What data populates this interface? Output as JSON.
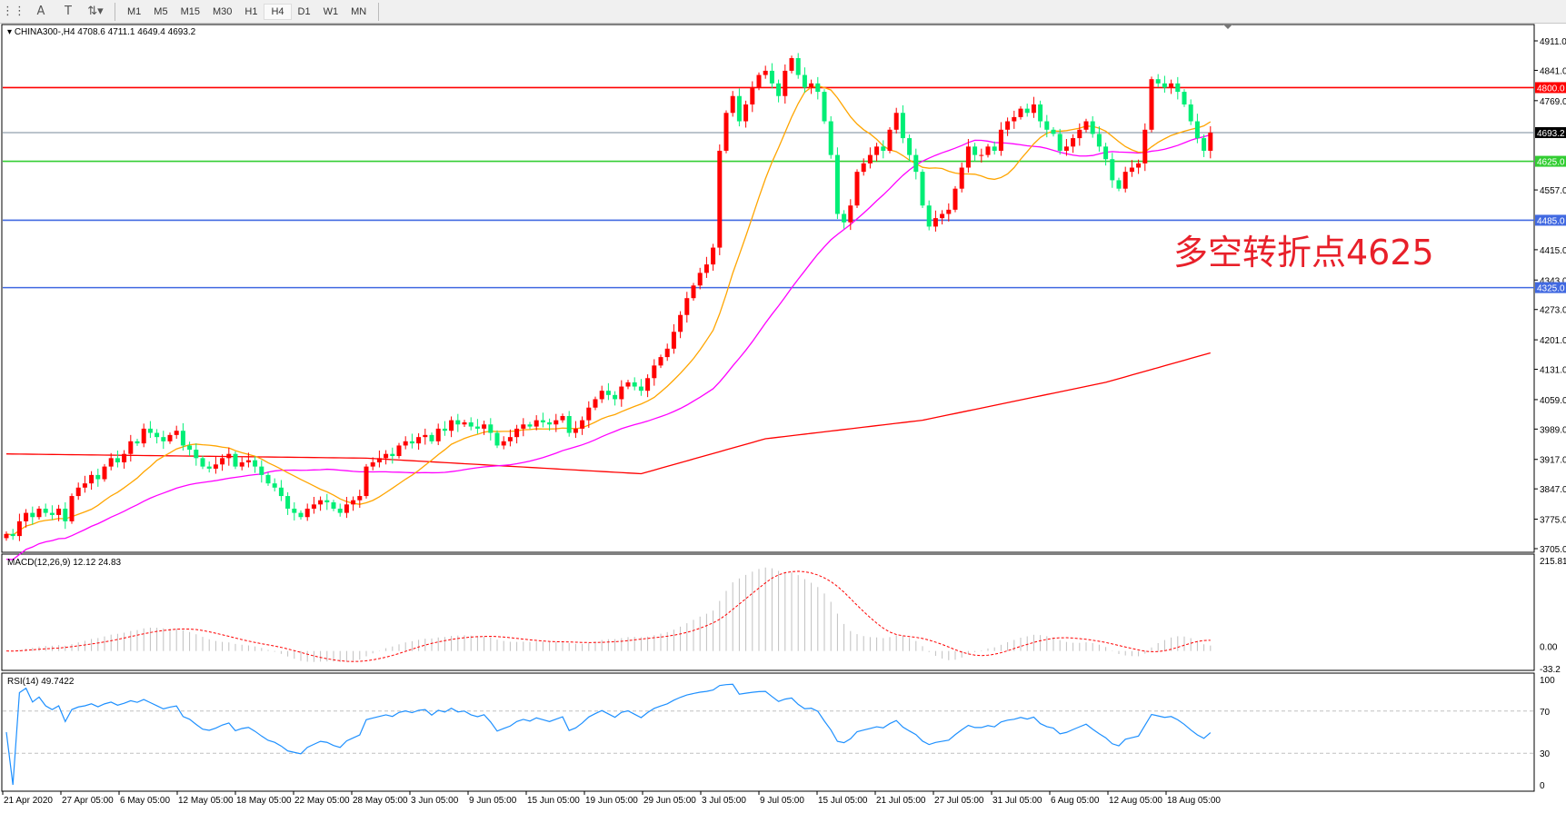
{
  "toolbar": {
    "icons": [
      "grid-icon",
      "text-icon",
      "text-label-icon",
      "arrows-icon"
    ],
    "timeframes": [
      "M1",
      "M5",
      "M15",
      "M30",
      "H1",
      "H4",
      "D1",
      "W1",
      "MN"
    ],
    "active_timeframe": "H4"
  },
  "main": {
    "header": "CHINA300-,H4  4708.6 4711.1 4649.4 4693.2",
    "annotation": "多空转折点4625",
    "annotation_color": "#e8202a"
  },
  "chart_data": [
    {
      "type": "candlestick",
      "symbol": "CHINA300-",
      "timeframe": "H4",
      "ylim": [
        3705,
        4911
      ],
      "y_ticks": [
        "4911.0",
        "4841.0",
        "4769.0",
        "4557.0",
        "4415.0",
        "4343.0",
        "4273.0",
        "4201.0",
        "4131.0",
        "4059.0",
        "3989.0",
        "3917.0",
        "3847.0",
        "3775.0",
        "3705.0"
      ],
      "x_ticks": [
        "21 Apr 2020",
        "27 Apr 05:00",
        "6 May 05:00",
        "12 May 05:00",
        "18 May 05:00",
        "22 May 05:00",
        "28 May 05:00",
        "3 Jun 05:00",
        "9 Jun 05:00",
        "15 Jun 05:00",
        "19 Jun 05:00",
        "29 Jun 05:00",
        "3 Jul 05:00",
        "9 Jul 05:00",
        "15 Jul 05:00",
        "21 Jul 05:00",
        "27 Jul 05:00",
        "31 Jul 05:00",
        "6 Aug 05:00",
        "12 Aug 05:00",
        "18 Aug 05:00"
      ],
      "up_color": "#ff0000",
      "down_color": "#00ee76",
      "closes": [
        3740,
        3735,
        3770,
        3790,
        3780,
        3800,
        3790,
        3785,
        3800,
        3770,
        3830,
        3850,
        3860,
        3880,
        3870,
        3900,
        3920,
        3910,
        3930,
        3960,
        3955,
        3990,
        3980,
        3970,
        3960,
        3975,
        3985,
        3950,
        3940,
        3920,
        3900,
        3895,
        3905,
        3920,
        3930,
        3900,
        3910,
        3915,
        3900,
        3880,
        3860,
        3850,
        3830,
        3800,
        3790,
        3780,
        3800,
        3810,
        3820,
        3815,
        3800,
        3790,
        3810,
        3820,
        3830,
        3900,
        3910,
        3920,
        3930,
        3925,
        3950,
        3960,
        3955,
        3970,
        3975,
        3960,
        3990,
        3985,
        4010,
        4000,
        4005,
        3995,
        3990,
        4000,
        3980,
        3950,
        3960,
        3970,
        3990,
        4000,
        3995,
        4010,
        4005,
        4000,
        4010,
        4020,
        3980,
        3990,
        4010,
        4040,
        4060,
        4080,
        4070,
        4060,
        4090,
        4100,
        4090,
        4080,
        4110,
        4140,
        4160,
        4180,
        4220,
        4260,
        4300,
        4330,
        4360,
        4380,
        4420,
        4650,
        4740,
        4780,
        4720,
        4760,
        4800,
        4830,
        4840,
        4810,
        4780,
        4840,
        4870,
        4830,
        4800,
        4810,
        4790,
        4720,
        4640,
        4500,
        4480,
        4520,
        4600,
        4620,
        4640,
        4660,
        4650,
        4700,
        4740,
        4680,
        4640,
        4600,
        4520,
        4470,
        4490,
        4500,
        4510,
        4560,
        4610,
        4660,
        4640,
        4640,
        4660,
        4650,
        4700,
        4720,
        4730,
        4750,
        4740,
        4760,
        4720,
        4700,
        4690,
        4650,
        4660,
        4680,
        4700,
        4720,
        4690,
        4660,
        4630,
        4580,
        4560,
        4600,
        4610,
        4620,
        4700,
        4820,
        4810,
        4800,
        4810,
        4790,
        4760,
        4720,
        4680,
        4650,
        4693.2
      ],
      "ma_long_points": [
        [
          0,
          3930
        ],
        [
          55,
          3920
        ],
        [
          97,
          3883
        ],
        [
          116,
          3966
        ],
        [
          140,
          4010
        ],
        [
          168,
          4100
        ],
        [
          184,
          4170
        ]
      ],
      "ma_colors": {
        "fast": "#ffa500",
        "mid": "#ff00ff",
        "long": "#ff0000"
      },
      "levels": [
        {
          "value": "4800.0",
          "color": "#ff0000"
        },
        {
          "value": "4693.2",
          "color": "#778899",
          "tag_bg": "#000000"
        },
        {
          "value": "4625.0",
          "color": "#32cd32"
        },
        {
          "value": "4485.0",
          "color": "#4169e1"
        },
        {
          "value": "4325.0",
          "color": "#4169e1"
        }
      ]
    },
    {
      "type": "histogram",
      "label": "MACD(12,26,9) 12.12 24.83",
      "ylim": [
        -33.2,
        215.81
      ],
      "y_ticks": [
        "215.81",
        "0.00",
        "-33.2"
      ],
      "hist_color": "#c0c0c0",
      "signal_color": "#ff0000"
    },
    {
      "type": "line",
      "label": "RSI(14) 49.7422",
      "ylim": [
        0,
        100
      ],
      "y_ticks": [
        "100",
        "70",
        "30",
        "0"
      ],
      "color": "#1e90ff"
    }
  ]
}
